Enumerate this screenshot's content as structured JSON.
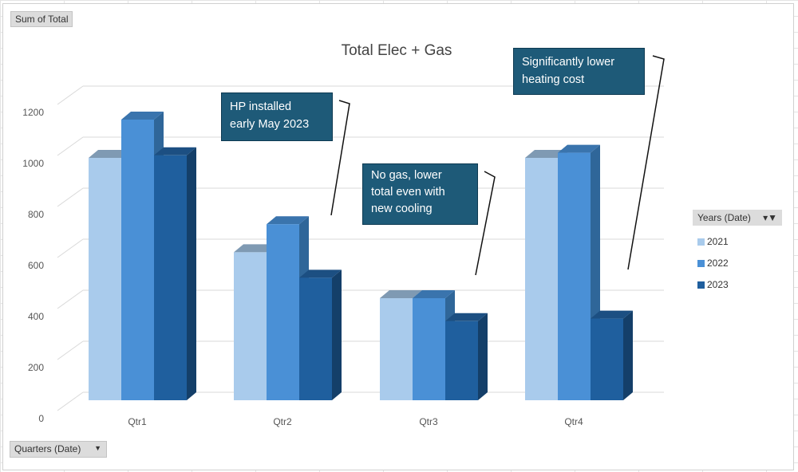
{
  "field_buttons": {
    "value": "Sum of Total",
    "axis": "Quarters (Date)",
    "axis_icon": "dropdown-arrow-icon"
  },
  "chart_data": {
    "type": "bar",
    "style": "3d-clustered-column",
    "title": "Total Elec + Gas",
    "xlabel": "",
    "ylabel": "",
    "categories": [
      "Qtr1",
      "Qtr2",
      "Qtr3",
      "Qtr4"
    ],
    "series": [
      {
        "name": "2021",
        "values": [
          950,
          580,
          400,
          950
        ],
        "color": "#a9cbec"
      },
      {
        "name": "2022",
        "values": [
          1100,
          690,
          400,
          970
        ],
        "color": "#4a90d6"
      },
      {
        "name": "2023",
        "values": [
          960,
          480,
          310,
          320
        ],
        "color": "#1f5f9e"
      }
    ],
    "ylim": [
      0,
      1200
    ],
    "yticks": [
      "0",
      "200",
      "400",
      "600",
      "800",
      "1000",
      "1200"
    ],
    "grid": true,
    "legend": {
      "title": "Years (Date)",
      "position": "right",
      "filter_icon": "filter-icon"
    },
    "annotations": [
      {
        "lines": [
          "HP installed",
          "early May 2023"
        ]
      },
      {
        "lines": [
          "No gas, lower",
          "total even with",
          "new cooling"
        ]
      },
      {
        "lines": [
          "Significantly lower",
          "heating cost"
        ]
      }
    ]
  }
}
